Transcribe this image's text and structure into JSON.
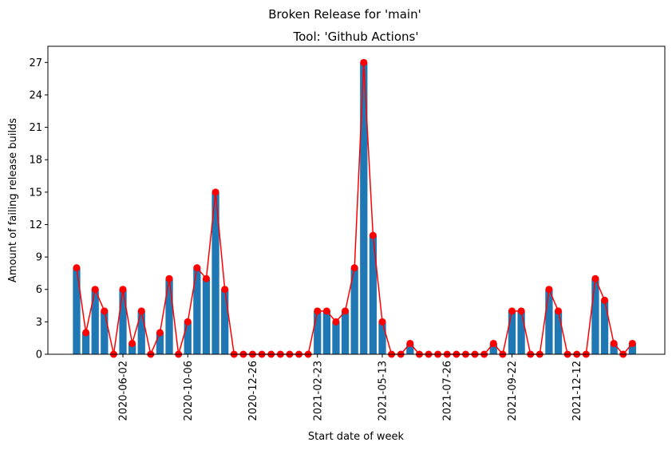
{
  "chart_data": {
    "type": "bar_line",
    "suptitle": "Broken Release for 'main'",
    "title": "Tool: 'Github Actions'",
    "xlabel": "Start date of week",
    "ylabel": "Amount of failing release builds",
    "x": [
      0,
      1,
      2,
      3,
      4,
      5,
      6,
      7,
      8,
      9,
      10,
      11,
      12,
      13,
      14,
      15,
      16,
      17,
      18,
      19,
      20,
      21,
      22,
      23,
      24,
      25,
      26,
      27,
      28,
      29,
      30,
      31,
      32,
      33,
      34,
      35,
      36,
      37,
      38,
      39,
      40,
      41,
      42,
      43,
      44,
      45,
      46,
      47,
      48,
      49,
      50,
      51,
      52,
      53,
      54,
      55,
      56,
      57,
      58,
      59,
      60
    ],
    "values": [
      8,
      2,
      6,
      4,
      0,
      6,
      1,
      4,
      0,
      2,
      7,
      0,
      3,
      8,
      7,
      15,
      6,
      0,
      0,
      0,
      0,
      0,
      0,
      0,
      0,
      0,
      4,
      4,
      3,
      4,
      8,
      27,
      11,
      3,
      0,
      0,
      1,
      0,
      0,
      0,
      0,
      0,
      0,
      0,
      0,
      1,
      0,
      4,
      4,
      0,
      0,
      6,
      4,
      0,
      0,
      0,
      7,
      5,
      1,
      0,
      1
    ],
    "bar_color": "#1f77b4",
    "line_color": "#ff0000",
    "xlim": [
      -3.1,
      63.5
    ],
    "xticks": [
      {
        "value": 5,
        "label": "2020-06-02"
      },
      {
        "value": 12,
        "label": "2020-10-06"
      },
      {
        "value": 19,
        "label": "2020-12-26"
      },
      {
        "value": 26,
        "label": "2021-02-23"
      },
      {
        "value": 33,
        "label": "2021-05-13"
      },
      {
        "value": 40,
        "label": "2021-07-26"
      },
      {
        "value": 47,
        "label": "2021-09-22"
      },
      {
        "value": 54,
        "label": "2021-12-12"
      }
    ],
    "ylim": [
      0,
      28.5
    ],
    "yticks": [
      0,
      3,
      6,
      9,
      12,
      15,
      18,
      21,
      24,
      27
    ]
  }
}
